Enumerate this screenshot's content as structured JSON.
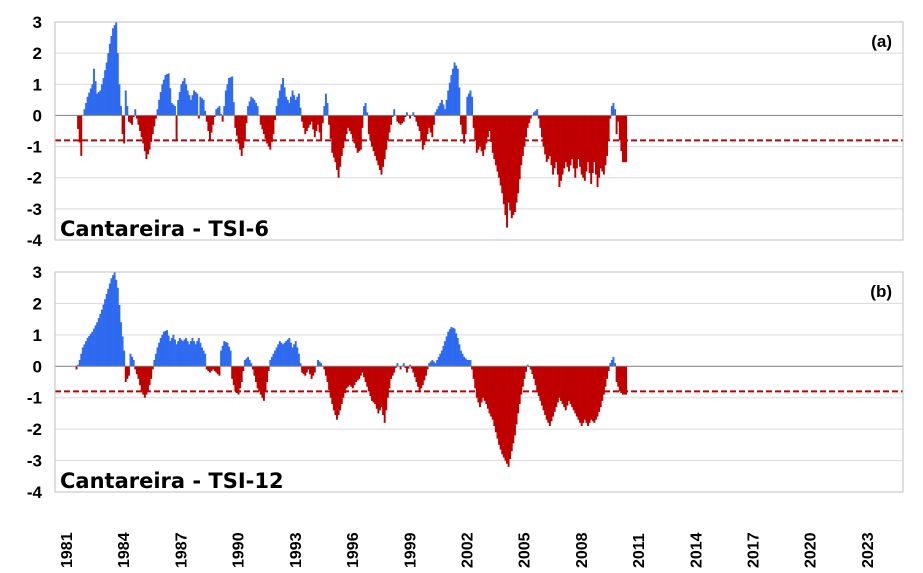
{
  "chart_data": [
    {
      "type": "bar",
      "title": "Cantareira - TSI-6",
      "panel_label": "(a)",
      "ylim": [
        -4,
        3
      ],
      "yticks": [
        3,
        2,
        1,
        0,
        -1,
        -2,
        -3,
        -4
      ],
      "threshold": -0.8,
      "x_start": 1981.5,
      "x_step": 0.0833,
      "colors": {
        "positive": "#2e6bf0",
        "negative": "#c00000",
        "threshold": "#c00000"
      },
      "segments": [
        [
          0,
          0
        ],
        [
          3,
          -1.3
        ],
        [
          4,
          0
        ],
        [
          7,
          0.6
        ],
        [
          10,
          1.0
        ],
        [
          11,
          1.5
        ],
        [
          13,
          0.7
        ],
        [
          15,
          0.8
        ],
        [
          17,
          1.2
        ],
        [
          19,
          1.7
        ],
        [
          21,
          2.3
        ],
        [
          23,
          2.8
        ],
        [
          25,
          3.0
        ],
        [
          27,
          1.0
        ],
        [
          28,
          0.3
        ],
        [
          29,
          -0.6
        ],
        [
          30,
          -0.9
        ],
        [
          31,
          0.8
        ],
        [
          32,
          0.3
        ],
        [
          33,
          -0.2
        ],
        [
          35,
          -0.3
        ],
        [
          37,
          0.2
        ],
        [
          38,
          -0.1
        ],
        [
          40,
          -0.5
        ],
        [
          42,
          -0.9
        ],
        [
          44,
          -1.4
        ],
        [
          46,
          -1.1
        ],
        [
          48,
          -0.6
        ],
        [
          50,
          -0.1
        ],
        [
          52,
          0.5
        ],
        [
          54,
          1.0
        ],
        [
          56,
          1.3
        ],
        [
          58,
          1.35
        ],
        [
          60,
          0.4
        ],
        [
          62,
          0.3
        ],
        [
          63,
          -0.8
        ],
        [
          64,
          0.5
        ],
        [
          66,
          1.0
        ],
        [
          68,
          1.2
        ],
        [
          70,
          0.8
        ],
        [
          72,
          0.5
        ],
        [
          74,
          0.8
        ],
        [
          76,
          0.7
        ],
        [
          77,
          -0.1
        ],
        [
          78,
          0.6
        ],
        [
          80,
          0.5
        ],
        [
          82,
          -0.2
        ],
        [
          84,
          -0.8
        ],
        [
          86,
          -0.3
        ],
        [
          88,
          0.2
        ],
        [
          90,
          0.3
        ],
        [
          92,
          -0.2
        ],
        [
          94,
          0.8
        ],
        [
          96,
          1.2
        ],
        [
          98,
          1.25
        ],
        [
          100,
          -0.4
        ],
        [
          102,
          -0.9
        ],
        [
          104,
          -1.3
        ],
        [
          106,
          -0.8
        ],
        [
          108,
          0.3
        ],
        [
          110,
          0.6
        ],
        [
          112,
          0.5
        ],
        [
          114,
          0.3
        ],
        [
          116,
          -0.3
        ],
        [
          118,
          -0.6
        ],
        [
          120,
          -0.9
        ],
        [
          122,
          -1.1
        ],
        [
          124,
          -0.6
        ],
        [
          126,
          0.3
        ],
        [
          128,
          0.8
        ],
        [
          130,
          1.2
        ],
        [
          132,
          0.6
        ],
        [
          134,
          0.4
        ],
        [
          136,
          0.8
        ],
        [
          138,
          0.5
        ],
        [
          140,
          0.7
        ],
        [
          142,
          -0.2
        ],
        [
          144,
          -0.6
        ],
        [
          146,
          -0.4
        ],
        [
          148,
          -0.2
        ],
        [
          150,
          -0.7
        ],
        [
          152,
          -0.3
        ],
        [
          154,
          -0.8
        ],
        [
          156,
          0.3
        ],
        [
          157,
          0.7
        ],
        [
          158,
          0.4
        ],
        [
          159,
          -0.3
        ],
        [
          161,
          -1.2
        ],
        [
          163,
          -1.5
        ],
        [
          165,
          -2.0
        ],
        [
          167,
          -1.3
        ],
        [
          169,
          -0.8
        ],
        [
          171,
          -0.4
        ],
        [
          173,
          -0.6
        ],
        [
          175,
          -0.9
        ],
        [
          177,
          -1.2
        ],
        [
          179,
          -1.1
        ],
        [
          181,
          0.3
        ],
        [
          182,
          0.4
        ],
        [
          183,
          0.1
        ],
        [
          184,
          -0.6
        ],
        [
          186,
          -1.0
        ],
        [
          188,
          -1.3
        ],
        [
          190,
          -1.6
        ],
        [
          192,
          -1.9
        ],
        [
          194,
          -1.4
        ],
        [
          196,
          -0.8
        ],
        [
          198,
          -0.3
        ],
        [
          200,
          0.2
        ],
        [
          202,
          -0.2
        ],
        [
          204,
          -0.3
        ],
        [
          206,
          -0.2
        ],
        [
          208,
          0.1
        ],
        [
          210,
          -0.1
        ],
        [
          212,
          0.1
        ],
        [
          214,
          -0.2
        ],
        [
          216,
          -0.5
        ],
        [
          218,
          -1.1
        ],
        [
          220,
          -0.8
        ],
        [
          222,
          -0.4
        ],
        [
          224,
          -0.7
        ],
        [
          226,
          0.1
        ],
        [
          228,
          0.3
        ],
        [
          230,
          0.5
        ],
        [
          232,
          0.2
        ],
        [
          234,
          0.8
        ],
        [
          236,
          1.3
        ],
        [
          238,
          1.7
        ],
        [
          240,
          1.5
        ],
        [
          241,
          0.9
        ],
        [
          242,
          -0.3
        ],
        [
          244,
          -0.9
        ],
        [
          245,
          -0.6
        ],
        [
          246,
          0.6
        ],
        [
          248,
          0.8
        ],
        [
          249,
          0.6
        ],
        [
          250,
          -0.4
        ],
        [
          252,
          -1.2
        ],
        [
          254,
          -1.0
        ],
        [
          256,
          -1.3
        ],
        [
          258,
          -0.9
        ],
        [
          260,
          -0.5
        ],
        [
          262,
          -1.2
        ],
        [
          264,
          -1.6
        ],
        [
          266,
          -2.0
        ],
        [
          268,
          -2.5
        ],
        [
          270,
          -3.2
        ],
        [
          271,
          -3.6
        ],
        [
          272,
          -2.8
        ],
        [
          274,
          -3.3
        ],
        [
          276,
          -3.1
        ],
        [
          278,
          -2.5
        ],
        [
          280,
          -1.6
        ],
        [
          282,
          -1.0
        ],
        [
          284,
          -0.4
        ],
        [
          286,
          -0.1
        ],
        [
          288,
          0.1
        ],
        [
          290,
          0.2
        ],
        [
          292,
          -0.4
        ],
        [
          294,
          -1.0
        ],
        [
          296,
          -1.5
        ],
        [
          298,
          -1.3
        ],
        [
          300,
          -1.9
        ],
        [
          302,
          -1.5
        ],
        [
          304,
          -2.3
        ],
        [
          306,
          -1.9
        ],
        [
          308,
          -1.5
        ],
        [
          310,
          -1.8
        ],
        [
          312,
          -1.4
        ],
        [
          314,
          -2.0
        ],
        [
          316,
          -1.4
        ],
        [
          318,
          -1.9
        ],
        [
          320,
          -2.1
        ],
        [
          322,
          -1.5
        ],
        [
          324,
          -2.2
        ],
        [
          326,
          -1.5
        ],
        [
          328,
          -2.3
        ],
        [
          330,
          -1.7
        ],
        [
          332,
          -1.9
        ],
        [
          334,
          -1.3
        ],
        [
          335,
          -0.8
        ],
        [
          336,
          -0.1
        ],
        [
          337,
          0.3
        ],
        [
          338,
          0.4
        ],
        [
          339,
          0.2
        ],
        [
          340,
          -0.6
        ],
        [
          341,
          -0.2
        ],
        [
          342,
          -0.8
        ],
        [
          344,
          -1.5
        ],
        [
          346,
          -1.5
        ]
      ]
    },
    {
      "type": "bar",
      "title": "Cantareira - TSI-12",
      "panel_label": "(b)",
      "ylim": [
        -4,
        3
      ],
      "yticks": [
        3,
        2,
        1,
        0,
        -1,
        -2,
        -3,
        -4
      ],
      "threshold": -0.8,
      "x_start": 1981.5,
      "x_step": 0.0833,
      "colors": {
        "positive": "#2e6bf0",
        "negative": "#c00000",
        "threshold": "#c00000"
      },
      "segments": [
        [
          0,
          -0.1
        ],
        [
          2,
          0.2
        ],
        [
          4,
          0.6
        ],
        [
          7,
          0.9
        ],
        [
          10,
          1.1
        ],
        [
          13,
          1.4
        ],
        [
          16,
          1.8
        ],
        [
          19,
          2.3
        ],
        [
          22,
          2.8
        ],
        [
          24,
          3.0
        ],
        [
          26,
          2.5
        ],
        [
          28,
          1.4
        ],
        [
          30,
          0.5
        ],
        [
          31,
          -0.5
        ],
        [
          33,
          -0.3
        ],
        [
          34,
          0.4
        ],
        [
          36,
          0.2
        ],
        [
          37,
          -0.1
        ],
        [
          39,
          -0.4
        ],
        [
          41,
          -0.8
        ],
        [
          43,
          -1.0
        ],
        [
          45,
          -0.8
        ],
        [
          47,
          -0.4
        ],
        [
          49,
          0.2
        ],
        [
          51,
          0.6
        ],
        [
          53,
          0.9
        ],
        [
          55,
          1.1
        ],
        [
          57,
          1.15
        ],
        [
          59,
          0.8
        ],
        [
          61,
          1.0
        ],
        [
          63,
          0.7
        ],
        [
          65,
          0.9
        ],
        [
          67,
          0.8
        ],
        [
          69,
          0.9
        ],
        [
          71,
          0.7
        ],
        [
          73,
          0.9
        ],
        [
          75,
          0.7
        ],
        [
          77,
          0.9
        ],
        [
          79,
          0.6
        ],
        [
          81,
          0.4
        ],
        [
          82,
          -0.1
        ],
        [
          84,
          -0.2
        ],
        [
          86,
          -0.1
        ],
        [
          88,
          -0.2
        ],
        [
          90,
          -0.3
        ],
        [
          91,
          0.5
        ],
        [
          93,
          0.8
        ],
        [
          95,
          0.75
        ],
        [
          97,
          0.5
        ],
        [
          98,
          -0.4
        ],
        [
          100,
          -0.8
        ],
        [
          102,
          -0.9
        ],
        [
          104,
          -0.5
        ],
        [
          106,
          0.2
        ],
        [
          108,
          0.3
        ],
        [
          110,
          0.1
        ],
        [
          112,
          -0.3
        ],
        [
          114,
          -0.7
        ],
        [
          116,
          -0.9
        ],
        [
          118,
          -1.1
        ],
        [
          120,
          -0.5
        ],
        [
          122,
          0.2
        ],
        [
          124,
          0.4
        ],
        [
          126,
          0.6
        ],
        [
          128,
          0.8
        ],
        [
          130,
          0.7
        ],
        [
          132,
          0.8
        ],
        [
          134,
          0.9
        ],
        [
          136,
          0.6
        ],
        [
          138,
          0.8
        ],
        [
          140,
          0.4
        ],
        [
          142,
          -0.2
        ],
        [
          144,
          -0.3
        ],
        [
          146,
          -0.1
        ],
        [
          148,
          -0.4
        ],
        [
          150,
          -0.2
        ],
        [
          152,
          0.2
        ],
        [
          154,
          0.1
        ],
        [
          156,
          -0.1
        ],
        [
          158,
          -0.5
        ],
        [
          160,
          -1.0
        ],
        [
          162,
          -1.4
        ],
        [
          164,
          -1.7
        ],
        [
          166,
          -1.4
        ],
        [
          168,
          -1.0
        ],
        [
          170,
          -0.7
        ],
        [
          172,
          -0.6
        ],
        [
          174,
          -0.7
        ],
        [
          176,
          -0.5
        ],
        [
          178,
          -0.4
        ],
        [
          180,
          -0.2
        ],
        [
          182,
          -0.5
        ],
        [
          184,
          -0.8
        ],
        [
          186,
          -1.1
        ],
        [
          188,
          -1.2
        ],
        [
          190,
          -1.5
        ],
        [
          192,
          -1.3
        ],
        [
          194,
          -1.8
        ],
        [
          196,
          -1.0
        ],
        [
          198,
          -0.4
        ],
        [
          200,
          -0.2
        ],
        [
          202,
          0.1
        ],
        [
          204,
          -0.1
        ],
        [
          206,
          0.1
        ],
        [
          208,
          -0.2
        ],
        [
          210,
          0.05
        ],
        [
          212,
          -0.2
        ],
        [
          214,
          -0.5
        ],
        [
          216,
          -0.8
        ],
        [
          218,
          -0.6
        ],
        [
          220,
          -0.3
        ],
        [
          222,
          0.1
        ],
        [
          224,
          0.2
        ],
        [
          226,
          0.1
        ],
        [
          228,
          0.3
        ],
        [
          230,
          0.5
        ],
        [
          232,
          0.8
        ],
        [
          234,
          1.1
        ],
        [
          236,
          1.25
        ],
        [
          238,
          1.2
        ],
        [
          240,
          0.9
        ],
        [
          242,
          0.5
        ],
        [
          244,
          0.3
        ],
        [
          246,
          0.2
        ],
        [
          248,
          0.2
        ],
        [
          250,
          -0.4
        ],
        [
          252,
          -1.0
        ],
        [
          254,
          -1.3
        ],
        [
          256,
          -1.0
        ],
        [
          258,
          -1.2
        ],
        [
          260,
          -1.5
        ],
        [
          262,
          -1.7
        ],
        [
          264,
          -2.1
        ],
        [
          266,
          -2.5
        ],
        [
          268,
          -2.8
        ],
        [
          270,
          -3.0
        ],
        [
          272,
          -3.2
        ],
        [
          274,
          -2.7
        ],
        [
          276,
          -2.2
        ],
        [
          278,
          -1.5
        ],
        [
          280,
          -0.9
        ],
        [
          282,
          -0.4
        ],
        [
          284,
          0.05
        ],
        [
          286,
          -0.1
        ],
        [
          288,
          -0.4
        ],
        [
          290,
          -0.8
        ],
        [
          292,
          -1.1
        ],
        [
          294,
          -1.4
        ],
        [
          296,
          -1.7
        ],
        [
          298,
          -1.9
        ],
        [
          300,
          -1.6
        ],
        [
          302,
          -1.3
        ],
        [
          304,
          -1.0
        ],
        [
          306,
          -1.2
        ],
        [
          308,
          -1.4
        ],
        [
          310,
          -1.1
        ],
        [
          312,
          -1.3
        ],
        [
          314,
          -1.5
        ],
        [
          316,
          -1.7
        ],
        [
          318,
          -1.9
        ],
        [
          320,
          -1.7
        ],
        [
          322,
          -1.9
        ],
        [
          324,
          -1.7
        ],
        [
          326,
          -1.8
        ],
        [
          328,
          -1.6
        ],
        [
          330,
          -1.3
        ],
        [
          332,
          -0.9
        ],
        [
          334,
          -0.4
        ],
        [
          336,
          0.1
        ],
        [
          338,
          0.3
        ],
        [
          339,
          0.1
        ],
        [
          340,
          -0.5
        ],
        [
          342,
          -0.8
        ],
        [
          344,
          -0.9
        ],
        [
          346,
          -0.9
        ]
      ]
    }
  ],
  "x_ticks": [
    "1981",
    "1984",
    "1987",
    "1990",
    "1993",
    "1996",
    "1999",
    "2002",
    "2005",
    "2008",
    "2011",
    "2014",
    "2017",
    "2020",
    "2023"
  ]
}
